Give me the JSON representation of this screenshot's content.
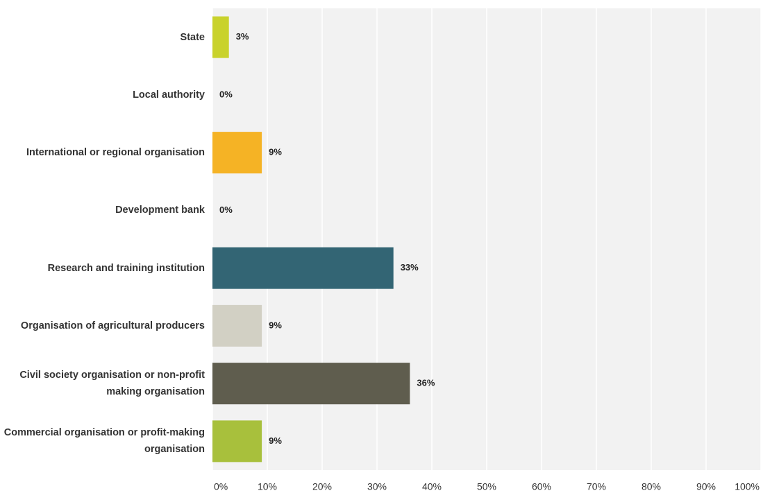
{
  "chart_data": {
    "type": "barh",
    "categories": [
      "State",
      "Local authority",
      "International or regional organisation",
      "Development bank",
      "Research and training institution",
      "Organisation of agricultural producers",
      "Civil society organisation or non-profit making organisation",
      "Commercial organisation or profit-making organisation"
    ],
    "values": [
      3,
      0,
      9,
      0,
      33,
      9,
      36,
      9
    ],
    "value_labels": [
      "3%",
      "0%",
      "9%",
      "0%",
      "33%",
      "9%",
      "36%",
      "9%"
    ],
    "colors": [
      "#c9d22c",
      "#8a8a8a",
      "#f5b325",
      "#8a8a8a",
      "#336574",
      "#d2d0c4",
      "#5f5d4e",
      "#a8c03c"
    ],
    "xlim": [
      0,
      100
    ],
    "xticks": [
      {
        "value": 0,
        "label": "0%"
      },
      {
        "value": 10,
        "label": "10%"
      },
      {
        "value": 20,
        "label": "20%"
      },
      {
        "value": 30,
        "label": "30%"
      },
      {
        "value": 40,
        "label": "40%"
      },
      {
        "value": 50,
        "label": "50%"
      },
      {
        "value": 60,
        "label": "60%"
      },
      {
        "value": 70,
        "label": "70%"
      },
      {
        "value": 80,
        "label": "80%"
      },
      {
        "value": 90,
        "label": "90%"
      },
      {
        "value": 100,
        "label": "100%"
      }
    ],
    "grid": true
  }
}
